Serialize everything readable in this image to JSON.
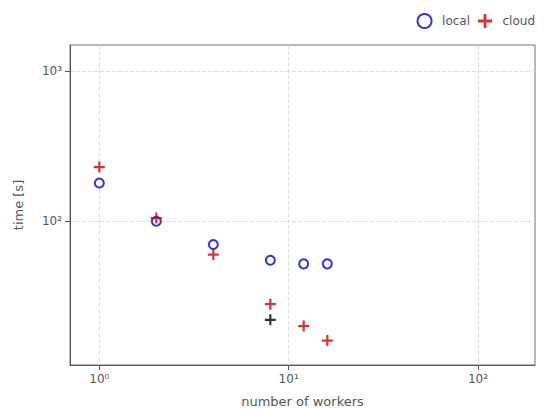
{
  "chart_data": {
    "type": "scatter",
    "xlabel": "number of workers",
    "ylabel": "time [s]",
    "log": true,
    "grid": true,
    "legend": "upper right",
    "xlim": [
      0.7,
      200
    ],
    "ylim": [
      11,
      1500
    ],
    "xticks": [
      {
        "value": 1,
        "label": "10⁰"
      },
      {
        "value": 10,
        "label": "10¹"
      },
      {
        "value": 100,
        "label": "10²"
      }
    ],
    "yticks": [
      {
        "value": 100,
        "label": "10²"
      },
      {
        "value": 1000,
        "label": "10³"
      }
    ],
    "series": [
      {
        "name": "local",
        "color": "#0000cc",
        "marker": "circle",
        "x": [
          1,
          2,
          4,
          8,
          12,
          16
        ],
        "values": [
          180,
          100,
          70,
          55,
          52,
          52
        ]
      },
      {
        "name": "cloud",
        "color": "#cc0000",
        "marker": "plus",
        "x": [
          1,
          2,
          4,
          8,
          12,
          16
        ],
        "values": [
          230,
          105,
          60,
          28,
          20,
          16
        ]
      },
      {
        "color": "#000000",
        "marker": "plus",
        "x": [
          8
        ],
        "values": [
          22
        ]
      }
    ]
  }
}
